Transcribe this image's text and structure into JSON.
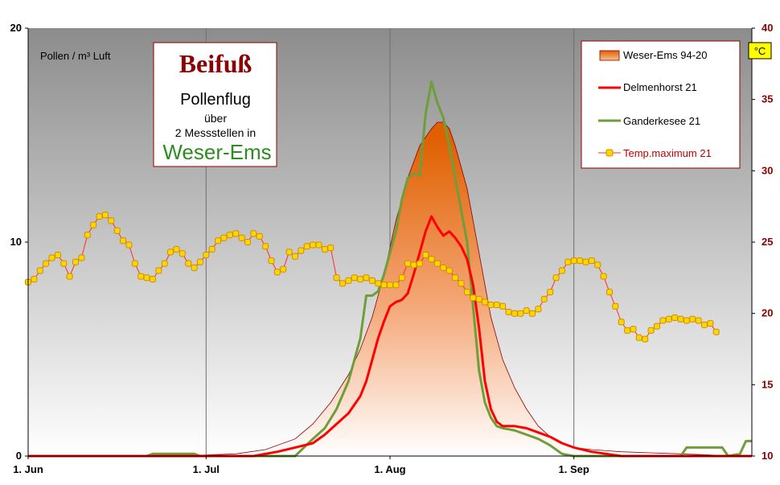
{
  "chart_data": {
    "type": "line",
    "title": {
      "main": "Beifuß",
      "line2": "Pollenflug",
      "line3": "über",
      "line4": "2 Messstellen in",
      "region": "Weser-Ems"
    },
    "ylabel_left": "Pollen / m³ Luft",
    "ylabel_right": "°C",
    "ylim_left": [
      0,
      20
    ],
    "ylim_right": [
      10,
      40
    ],
    "yticks_left": [
      "0",
      "10",
      "20"
    ],
    "yticks_right": [
      "10",
      "15",
      "20",
      "25",
      "30",
      "35",
      "40"
    ],
    "xlim": [
      0,
      122
    ],
    "xticks": [
      {
        "label": "1. Jun",
        "day": 0
      },
      {
        "label": "1. Jul",
        "day": 30
      },
      {
        "label": "1. Aug",
        "day": 61
      },
      {
        "label": "1. Sep",
        "day": 92
      }
    ],
    "grid": "vertical",
    "legend_position": "top-right",
    "colors": {
      "area_dark": "#E06000",
      "area_light": "#FFFFFF",
      "area_outline": "#8B0000",
      "delmenhorst": "#FF0000",
      "ganderkesee": "#6E9E3A",
      "temp_line": "#FF2A2A",
      "temp_marker_fill": "#FFD700",
      "temp_marker_edge": "#D28A00",
      "bg_top": "#8C8C8C",
      "bg_bottom": "#FFFFFF"
    },
    "series": [
      {
        "name": "Weser-Ems 94-20",
        "kind": "area",
        "axis": "left",
        "points": [
          [
            0,
            0
          ],
          [
            20,
            0
          ],
          [
            30,
            0.05
          ],
          [
            35,
            0.1
          ],
          [
            40,
            0.3
          ],
          [
            45,
            0.8
          ],
          [
            48,
            1.5
          ],
          [
            51,
            2.5
          ],
          [
            54,
            3.8
          ],
          [
            56,
            5
          ],
          [
            58,
            6.5
          ],
          [
            60,
            8.5
          ],
          [
            62,
            11
          ],
          [
            64,
            13
          ],
          [
            66,
            14.5
          ],
          [
            68,
            15.3
          ],
          [
            69,
            15.6
          ],
          [
            70,
            15.6
          ],
          [
            71,
            15.3
          ],
          [
            72,
            14.5
          ],
          [
            74,
            12.5
          ],
          [
            76,
            9.5
          ],
          [
            78,
            6.5
          ],
          [
            80,
            4.5
          ],
          [
            82,
            3.2
          ],
          [
            84,
            2.2
          ],
          [
            86,
            1.4
          ],
          [
            88,
            0.9
          ],
          [
            90,
            0.6
          ],
          [
            92,
            0.4
          ],
          [
            95,
            0.3
          ],
          [
            100,
            0.2
          ],
          [
            105,
            0.15
          ],
          [
            110,
            0.1
          ],
          [
            115,
            0.05
          ],
          [
            122,
            0
          ]
        ]
      },
      {
        "name": "Delmenhorst 21",
        "kind": "line",
        "axis": "left",
        "points": [
          [
            0,
            0
          ],
          [
            20,
            0
          ],
          [
            30,
            0
          ],
          [
            38,
            0
          ],
          [
            42,
            0.2
          ],
          [
            45,
            0.4
          ],
          [
            48,
            0.6
          ],
          [
            50,
            1
          ],
          [
            52,
            1.5
          ],
          [
            54,
            2
          ],
          [
            56,
            2.8
          ],
          [
            57,
            3.5
          ],
          [
            58,
            4.5
          ],
          [
            59,
            5.5
          ],
          [
            60,
            6.3
          ],
          [
            61,
            7
          ],
          [
            62,
            7.2
          ],
          [
            63,
            7.3
          ],
          [
            64,
            7.6
          ],
          [
            65,
            8.5
          ],
          [
            66,
            9.5
          ],
          [
            67,
            10.5
          ],
          [
            68,
            11.2
          ],
          [
            69,
            10.7
          ],
          [
            70,
            10.3
          ],
          [
            71,
            10.5
          ],
          [
            72,
            10.2
          ],
          [
            73,
            9.8
          ],
          [
            74,
            9.2
          ],
          [
            75,
            8
          ],
          [
            76,
            6
          ],
          [
            77,
            3.5
          ],
          [
            78,
            2.2
          ],
          [
            79,
            1.6
          ],
          [
            80,
            1.4
          ],
          [
            82,
            1.4
          ],
          [
            84,
            1.3
          ],
          [
            86,
            1.1
          ],
          [
            88,
            0.9
          ],
          [
            90,
            0.6
          ],
          [
            92,
            0.4
          ],
          [
            95,
            0.2
          ],
          [
            100,
            0
          ],
          [
            122,
            0
          ]
        ]
      },
      {
        "name": "Ganderkesee 21",
        "kind": "line",
        "axis": "left",
        "points": [
          [
            0,
            0
          ],
          [
            20,
            0
          ],
          [
            21,
            0.1
          ],
          [
            28,
            0.1
          ],
          [
            29,
            0
          ],
          [
            40,
            0
          ],
          [
            45,
            0
          ],
          [
            48,
            0.8
          ],
          [
            50,
            1.3
          ],
          [
            52,
            2.2
          ],
          [
            54,
            3.5
          ],
          [
            56,
            5.5
          ],
          [
            57,
            7.5
          ],
          [
            58,
            7.5
          ],
          [
            59,
            7.7
          ],
          [
            60,
            8.5
          ],
          [
            61,
            9.5
          ],
          [
            62,
            10.5
          ],
          [
            63,
            12
          ],
          [
            64,
            13
          ],
          [
            65,
            13.2
          ],
          [
            66,
            13.1
          ],
          [
            67,
            16
          ],
          [
            68,
            17.5
          ],
          [
            69,
            16.5
          ],
          [
            70,
            15.8
          ],
          [
            71,
            14.5
          ],
          [
            72,
            13
          ],
          [
            73,
            11.5
          ],
          [
            74,
            10
          ],
          [
            75,
            7
          ],
          [
            76,
            4
          ],
          [
            77,
            2.5
          ],
          [
            78,
            1.8
          ],
          [
            79,
            1.4
          ],
          [
            80,
            1.3
          ],
          [
            82,
            1.2
          ],
          [
            84,
            1
          ],
          [
            86,
            0.8
          ],
          [
            88,
            0.5
          ],
          [
            90,
            0.1
          ],
          [
            92,
            0
          ],
          [
            100,
            0
          ],
          [
            110,
            0
          ],
          [
            111,
            0.4
          ],
          [
            117,
            0.4
          ],
          [
            118,
            0
          ],
          [
            120,
            0.1
          ],
          [
            121,
            0.7
          ],
          [
            122,
            0.7
          ]
        ]
      },
      {
        "name": "Temp.maximum 21",
        "kind": "line-markers",
        "axis": "right",
        "values": [
          22.2,
          22.4,
          23,
          23.5,
          23.9,
          24.1,
          23.5,
          22.6,
          23.6,
          23.9,
          25.5,
          26.2,
          26.8,
          26.9,
          26.5,
          25.8,
          25.1,
          24.8,
          23.5,
          22.6,
          22.5,
          22.4,
          23,
          23.5,
          24.3,
          24.5,
          24.2,
          23.5,
          23.2,
          23.6,
          24.1,
          24.5,
          25.1,
          25.3,
          25.5,
          25.6,
          25.3,
          25,
          25.6,
          25.4,
          24.7,
          23.7,
          22.9,
          23.1,
          24.3,
          24,
          24.4,
          24.7,
          24.8,
          24.8,
          24.5,
          24.6,
          22.5,
          22.1,
          22.3,
          22.5,
          22.4,
          22.5,
          22.3,
          22.1,
          22,
          22,
          22,
          22.5,
          23.5,
          23.4,
          23.5,
          24.1,
          23.8,
          23.5,
          23.2,
          23,
          22.5,
          22.1,
          21.5,
          21.1,
          21,
          20.8,
          20.6,
          20.6,
          20.5,
          20.1,
          20,
          20,
          20.2,
          20,
          20.3,
          21,
          21.5,
          22.5,
          23,
          23.6,
          23.7,
          23.7,
          23.6,
          23.7,
          23.4,
          22.6,
          21.5,
          20.5,
          19.4,
          18.8,
          18.9,
          18.3,
          18.2,
          18.8,
          19.1,
          19.5,
          19.6,
          19.7,
          19.6,
          19.5,
          19.6,
          19.5,
          19.2,
          19.3,
          18.7
        ]
      }
    ]
  }
}
